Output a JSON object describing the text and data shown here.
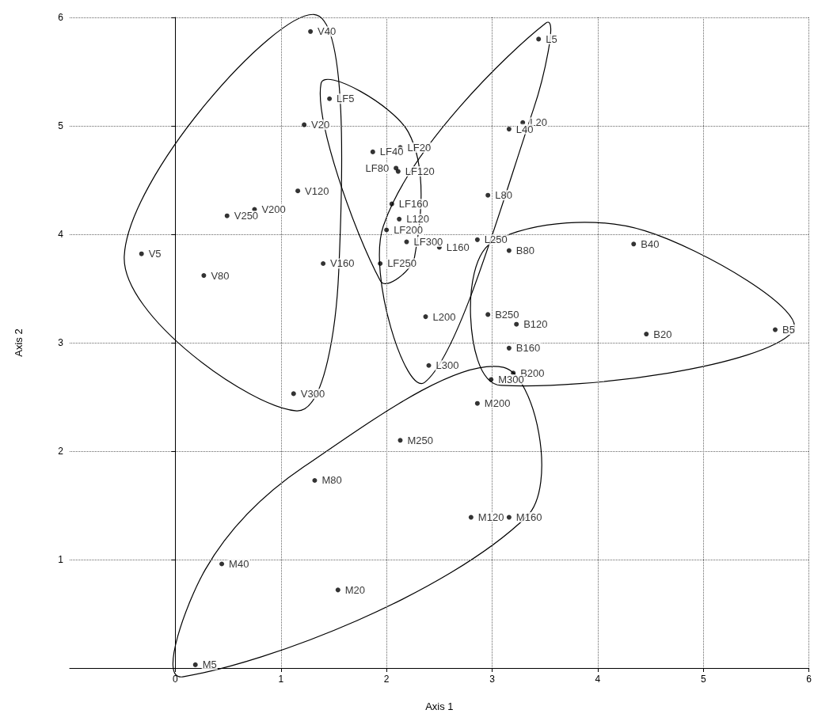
{
  "chart_data": {
    "type": "scatter",
    "xlabel": "Axis 1",
    "ylabel": "Axis 2",
    "xlim": [
      -1,
      6
    ],
    "ylim": [
      0,
      6
    ],
    "xticks": [
      0,
      1,
      2,
      3,
      4,
      5,
      6
    ],
    "yticks": [
      1,
      2,
      3,
      4,
      5,
      6
    ],
    "grid": true,
    "marker": "circle",
    "series": [
      {
        "color": "#000000",
        "x": [
          1.28,
          1.22,
          1.16,
          0.49,
          0.75,
          -0.32,
          0.27,
          1.4,
          1.12
        ],
        "values": [
          5.87,
          5.01,
          4.4,
          4.17,
          4.23,
          3.82,
          3.62,
          3.73,
          2.53
        ],
        "value_labels": [
          "V40",
          "V20",
          "V120",
          "V250",
          "V200",
          "V5",
          "V80",
          "V160",
          "V300"
        ]
      },
      {
        "color": "#000000",
        "x": [
          1.46,
          1.87,
          2.13,
          2.09,
          2.11,
          2.05,
          2.0,
          2.19,
          1.94
        ],
        "values": [
          5.25,
          4.76,
          4.8,
          4.61,
          4.58,
          4.28,
          4.04,
          3.93,
          3.73
        ],
        "value_labels": [
          "LF5",
          "LF40",
          "LF20",
          "LF80",
          "LF120",
          "LF160",
          "LF200",
          "LF300",
          "LF250"
        ]
      },
      {
        "color": "#000000",
        "x": [
          3.44,
          3.29,
          3.16,
          2.96,
          2.12,
          2.86,
          2.5,
          2.37,
          2.4
        ],
        "values": [
          5.8,
          5.03,
          4.97,
          4.36,
          4.14,
          3.95,
          3.88,
          3.24,
          2.79
        ],
        "value_labels": [
          "L5",
          "L20",
          "L40",
          "L80",
          "L120",
          "L250",
          "L160",
          "L200",
          "L300"
        ]
      },
      {
        "color": "#000000",
        "x": [
          4.34,
          3.16,
          2.96,
          3.23,
          4.46,
          5.68,
          3.16,
          3.2
        ],
        "values": [
          3.91,
          3.85,
          3.26,
          3.17,
          3.08,
          3.12,
          2.95,
          2.72
        ],
        "value_labels": [
          "B40",
          "B80",
          "B250",
          "B120",
          "B20",
          "B5",
          "B160",
          "B200"
        ]
      },
      {
        "color": "#000000",
        "x": [
          2.99,
          2.86,
          2.13,
          1.32,
          2.8,
          3.16,
          0.44,
          1.54,
          0.19
        ],
        "values": [
          2.66,
          2.44,
          2.1,
          1.73,
          1.39,
          1.39,
          0.96,
          0.72,
          0.03
        ],
        "value_labels": [
          "M300",
          "M200",
          "M250",
          "M80",
          "M120",
          "M160",
          "M40",
          "M20",
          "M5"
        ]
      }
    ]
  }
}
